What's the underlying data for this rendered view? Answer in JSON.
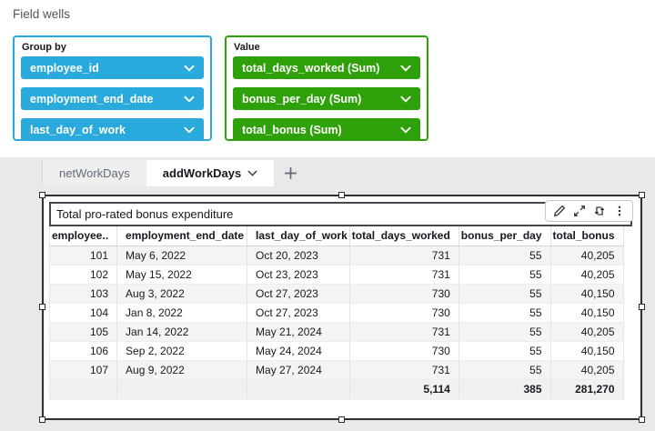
{
  "colors": {
    "dimension_blue": "#29A9DC",
    "measure_green": "#2EA10A",
    "selection_border": "#2f2f2f",
    "sheet_background": "#e9e9e9"
  },
  "field_wells": {
    "title": "Field wells",
    "group_by": {
      "label": "Group by",
      "pills": [
        "employee_id",
        "employment_end_date",
        "last_day_of_work"
      ]
    },
    "value": {
      "label": "Value",
      "pills": [
        "total_days_worked (Sum)",
        "bonus_per_day (Sum)",
        "total_bonus (Sum)"
      ]
    }
  },
  "sheet_tabs": {
    "tabs": [
      {
        "label": "netWorkDays",
        "active": false
      },
      {
        "label": "addWorkDays",
        "active": true
      }
    ],
    "add_button": "+"
  },
  "visual": {
    "title": "Total pro-rated bonus expenditure",
    "toolbar": {
      "icons": [
        "edit-pencil-icon",
        "maximize-icon",
        "swap-arrows-icon",
        "kebab-menu-icon"
      ]
    },
    "table": {
      "columns": [
        "employee..",
        "employment_end_date",
        "last_day_of_work",
        "total_days_worked",
        "bonus_per_day",
        "total_bonus"
      ],
      "col_aligns": [
        "right",
        "left",
        "left",
        "right",
        "right",
        "right"
      ],
      "rows": [
        [
          "101",
          "May 6, 2022",
          "Oct 20, 2023",
          "731",
          "55",
          "40,205"
        ],
        [
          "102",
          "May 15, 2022",
          "Oct 23, 2023",
          "731",
          "55",
          "40,205"
        ],
        [
          "103",
          "Aug 3, 2022",
          "Oct 27, 2023",
          "730",
          "55",
          "40,150"
        ],
        [
          "104",
          "Jan 8, 2022",
          "Oct 27, 2023",
          "730",
          "55",
          "40,150"
        ],
        [
          "105",
          "Jan 14, 2022",
          "May 21, 2024",
          "731",
          "55",
          "40,205"
        ],
        [
          "106",
          "Sep 2, 2022",
          "May 24, 2024",
          "730",
          "55",
          "40,150"
        ],
        [
          "107",
          "Aug 9, 2022",
          "May 27, 2024",
          "731",
          "55",
          "40,205"
        ]
      ],
      "totals": [
        "",
        "",
        "",
        "5,114",
        "385",
        "281,270"
      ]
    }
  }
}
